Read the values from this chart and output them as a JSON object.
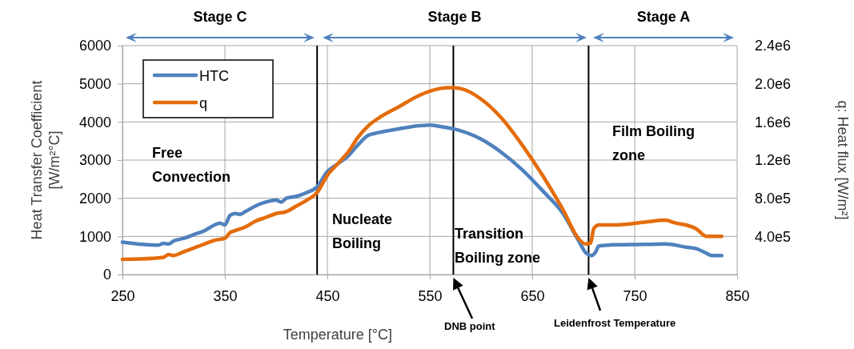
{
  "chart_data": {
    "type": "line",
    "xlabel": "Temperature [°C]",
    "ylabel": "Heat Transfer Coefficient [W/m²°C]",
    "y2label": "q: Heat flux [W/m²]",
    "xlim": [
      250,
      850
    ],
    "xticks": [
      250,
      350,
      450,
      550,
      650,
      750,
      850
    ],
    "ylim": [
      0,
      6000
    ],
    "yticks": [
      0,
      1000,
      2000,
      3000,
      4000,
      5000,
      6000
    ],
    "y2lim": [
      0,
      2400000
    ],
    "y2ticks": [
      {
        "value": 400000,
        "label": "4.0e5"
      },
      {
        "value": 800000,
        "label": "8.0e5"
      },
      {
        "value": 1200000,
        "label": "1.2e6"
      },
      {
        "value": 1600000,
        "label": "1.6e6"
      },
      {
        "value": 2000000,
        "label": "2.0e6"
      },
      {
        "value": 2400000,
        "label": "2.4e6"
      }
    ],
    "grid": true,
    "legend": "top left",
    "marker": "none",
    "line_style": "solid",
    "series": [
      {
        "name": "HTC",
        "color": "#4f81bd",
        "x": [
          250,
          270,
          285,
          290,
          295,
          300,
          310,
          320,
          330,
          340,
          345,
          350,
          355,
          360,
          365,
          370,
          380,
          390,
          400,
          405,
          410,
          420,
          430,
          440,
          450,
          460,
          470,
          480,
          490,
          500,
          520,
          540,
          550,
          560,
          573,
          600,
          620,
          640,
          660,
          680,
          695,
          703,
          708,
          712,
          715,
          730,
          760,
          780,
          800,
          810,
          820,
          825,
          835
        ],
        "values": [
          850,
          790,
          770,
          820,
          800,
          880,
          950,
          1050,
          1150,
          1300,
          1350,
          1300,
          1550,
          1600,
          1580,
          1650,
          1800,
          1900,
          1950,
          1900,
          2000,
          2050,
          2150,
          2300,
          2700,
          2900,
          3100,
          3400,
          3650,
          3720,
          3820,
          3900,
          3920,
          3880,
          3820,
          3550,
          3200,
          2750,
          2200,
          1600,
          900,
          550,
          500,
          600,
          750,
          780,
          790,
          800,
          720,
          680,
          560,
          500,
          500
        ]
      },
      {
        "name": "q",
        "color": "#e46c0a",
        "axis": "y2",
        "x": [
          250,
          280,
          290,
          295,
          300,
          310,
          320,
          330,
          340,
          350,
          355,
          360,
          370,
          380,
          390,
          400,
          410,
          420,
          430,
          440,
          450,
          460,
          470,
          480,
          490,
          500,
          520,
          540,
          560,
          570,
          580,
          600,
          620,
          640,
          660,
          680,
          695,
          702,
          707,
          710,
          715,
          730,
          760,
          780,
          790,
          800,
          810,
          820,
          835
        ],
        "values": [
          160000,
          170000,
          180000,
          210000,
          200000,
          240000,
          280000,
          320000,
          360000,
          380000,
          440000,
          460000,
          500000,
          560000,
          600000,
          640000,
          660000,
          720000,
          780000,
          860000,
          1040000,
          1160000,
          1280000,
          1440000,
          1560000,
          1640000,
          1760000,
          1880000,
          1950000,
          1960000,
          1950000,
          1840000,
          1640000,
          1360000,
          1040000,
          680000,
          380000,
          320000,
          330000,
          480000,
          520000,
          520000,
          550000,
          570000,
          540000,
          520000,
          480000,
          400000,
          400000
        ]
      }
    ],
    "ref_lines": [
      {
        "axis": "x",
        "value": 440,
        "color": "#000000"
      },
      {
        "axis": "x",
        "value": 573,
        "color": "#000000"
      },
      {
        "axis": "x",
        "value": 705,
        "color": "#000000"
      }
    ],
    "annotations": [
      "Free Convection",
      "Nucleate Boiling",
      "Transition Boiling zone",
      "Film Boiling zone",
      "Stage C",
      "Stage B",
      "Stage A",
      "DNB point",
      "Leidenfrost Temperature"
    ]
  }
}
